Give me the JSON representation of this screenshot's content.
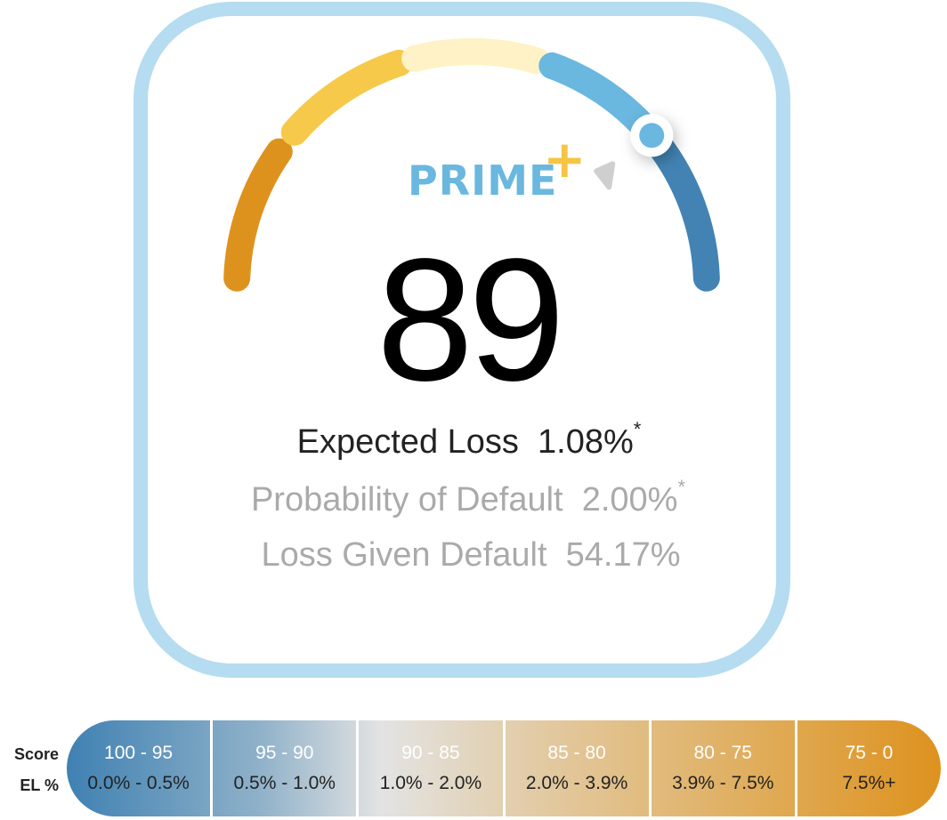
{
  "gauge": {
    "rating": "PRIME",
    "rating_modifier": "+",
    "score": "89",
    "colors": {
      "orange": "#de921e",
      "yellow": "#f6c94b",
      "cream": "#fff2c6",
      "light_blue": "#6ab7df",
      "dark_blue": "#4283b3",
      "border": "#b5dcf0"
    }
  },
  "metrics": {
    "expected_loss_label": "Expected Loss",
    "expected_loss_value": "1.08%",
    "expected_loss_note": "*",
    "pd_label": "Probability of Default",
    "pd_value": "2.00%",
    "pd_note": "*",
    "lgd_label": "Loss Given Default",
    "lgd_value": "54.17%"
  },
  "legend": {
    "score_label": "Score",
    "el_label": "EL %",
    "bands": [
      {
        "score": "100 - 95",
        "el": "0.0% - 0.5%"
      },
      {
        "score": "95 - 90",
        "el": "0.5% - 1.0%"
      },
      {
        "score": "90 - 85",
        "el": "1.0% - 2.0%"
      },
      {
        "score": "85 - 80",
        "el": "2.0% - 3.9%"
      },
      {
        "score": "80 - 75",
        "el": "3.9% - 7.5%"
      },
      {
        "score": "75 - 0",
        "el": "7.5%+"
      }
    ]
  }
}
